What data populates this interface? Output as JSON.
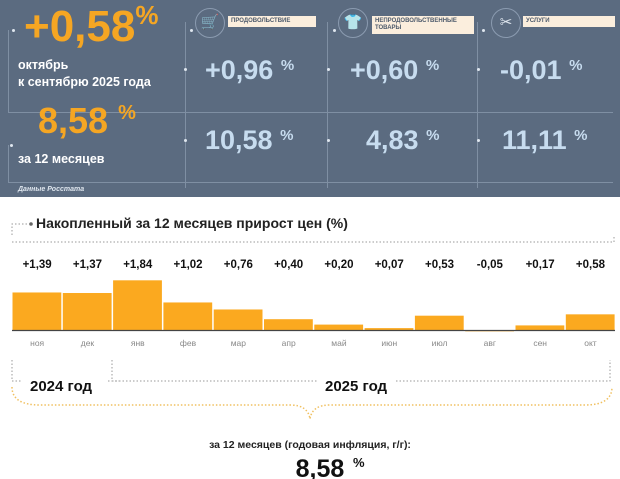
{
  "summary": {
    "monthly_value": "+0,58",
    "monthly_label_1": "октябрь",
    "monthly_label_2": "к сентябрю 2025 года",
    "annual_value": "8,58",
    "annual_label": "за 12 месяцев",
    "percent": "%",
    "source": "Данные Росстата",
    "categories": [
      {
        "name": "ПРОДОВОЛЬСТВИЕ",
        "icon": "shopping-cart-icon",
        "monthly": "+0,96",
        "annual": "10,58"
      },
      {
        "name": "НЕПРОДОВОЛЬСТВЕННЫЕ ТОВАРЫ",
        "icon": "shirt-icon",
        "monthly": "+0,60",
        "annual": "4,83"
      },
      {
        "name": "УСЛУГИ",
        "icon": "scissors-icon",
        "monthly": "-0,01",
        "annual": "11,11"
      }
    ]
  },
  "colors": {
    "panel": "#5b6b80",
    "accent": "#f5a623",
    "bar": "#fba91f",
    "value_blue": "#c7dcef"
  },
  "chart_data": {
    "type": "bar",
    "title": "Накопленный за 12 месяцев прирост цен (%)",
    "categories": [
      "ноя",
      "дек",
      "янв",
      "фев",
      "мар",
      "апр",
      "май",
      "июн",
      "июл",
      "авг",
      "сен",
      "окт"
    ],
    "values": [
      1.39,
      1.37,
      1.84,
      1.02,
      0.76,
      0.4,
      0.2,
      0.07,
      0.53,
      -0.05,
      0.17,
      0.58
    ],
    "labels": [
      "+1,39",
      "+1,37",
      "+1,84",
      "+1,02",
      "+0,76",
      "+0,40",
      "+0,20",
      "+0,07",
      "+0,53",
      "-0,05",
      "+0,17",
      "+0,58"
    ],
    "year_groups": [
      "2024 год",
      "2025 год"
    ],
    "total_label": "за 12 месяцев (годовая инфляция, г/г):",
    "total_value": "8,58",
    "total_unit": "%"
  }
}
